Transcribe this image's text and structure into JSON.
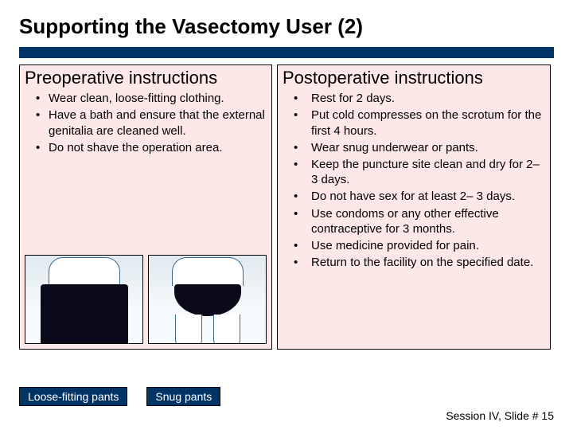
{
  "title": "Supporting the Vasectomy User (2)",
  "title_fontsize": 26,
  "colors": {
    "bar": "#003366",
    "panel_bg": "#fde7e7",
    "panel_border": "#000000",
    "text": "#000000",
    "caption_bg": "#003366",
    "caption_text": "#ffffff",
    "illustration_line": "#366a8f",
    "pants_fill": "#0a0a1a",
    "background": "#ffffff"
  },
  "left": {
    "heading": "Preoperative instructions",
    "bullets": [
      "Wear clean, loose-fitting clothing.",
      "Have a bath and ensure that the external genitalia are cleaned well.",
      "Do not shave the operation area."
    ],
    "images": [
      {
        "name": "loose-fitting-pants-illustration"
      },
      {
        "name": "snug-pants-illustration"
      }
    ]
  },
  "right": {
    "heading": "Postoperative instructions",
    "bullets": [
      "Rest for 2 days.",
      "Put cold compresses on the scrotum for the first 4 hours.",
      "Wear snug underwear or pants.",
      "Keep the puncture site clean and dry for 2– 3 days.",
      "Do not have sex for at least 2– 3 days.",
      "Use condoms or any other effective contraceptive for 3 months.",
      "Use medicine provided for pain.",
      "Return to the facility on the specified date."
    ]
  },
  "captions": {
    "loose": "Loose-fitting pants",
    "snug": "Snug pants"
  },
  "footer": "Session IV, Slide # 15",
  "layout": {
    "slide_width": 720,
    "slide_height": 540,
    "body_fontsize": 15,
    "heading_fontsize": 22
  }
}
